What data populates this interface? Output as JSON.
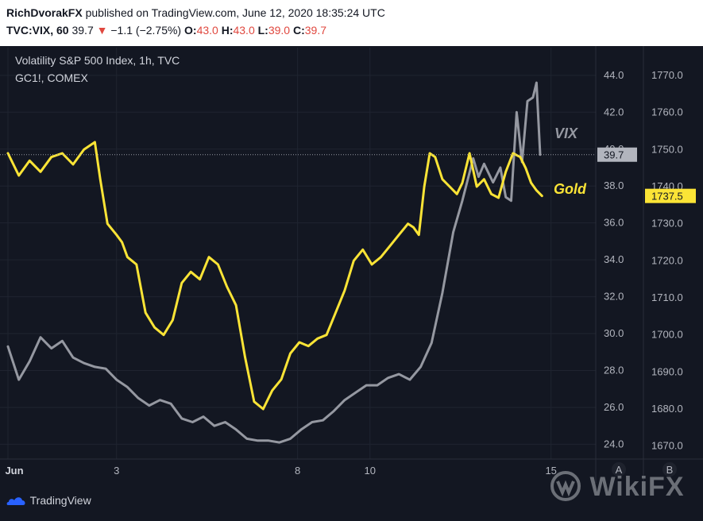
{
  "header": {
    "author": "RichDvorakFX",
    "published": "published on TradingView.com, June 12, 2020 18:35:24 UTC",
    "symbol": "TVC:VIX, 60",
    "last": "39.7",
    "arrow": "▼",
    "change": "−1.1 (−2.75%)",
    "o_label": "O:",
    "o_value": "43.0",
    "h_label": "H:",
    "h_value": "43.0",
    "l_label": "L:",
    "l_value": "39.0",
    "c_label": "C:",
    "c_value": "39.7"
  },
  "legend": {
    "line1": "Volatility S&P 500 Index, 1h, TVC",
    "line2": "GC1!, COMEX"
  },
  "footer": {
    "brand": "TradingView",
    "watermark": "WikiFX"
  },
  "colors": {
    "vix": "#9598a1",
    "gold": "#fbe436",
    "background": "#131722"
  },
  "chart_data": {
    "type": "line",
    "x_ticks": [
      "Jun",
      "3",
      "8",
      "10",
      "15"
    ],
    "x_tick_positions": [
      0,
      3,
      8,
      10,
      15
    ],
    "axis_buttons": [
      "A",
      "B"
    ],
    "annotations": [
      {
        "text": "VIX",
        "series": "VIX"
      },
      {
        "text": "Gold",
        "series": "Gold"
      }
    ],
    "left_axis": {
      "ticks": [
        "24.0",
        "26.0",
        "28.0",
        "30.0",
        "32.0",
        "34.0",
        "36.0",
        "38.0",
        "40.0",
        "42.0",
        "44.0"
      ],
      "range": [
        23.2,
        45.5
      ],
      "current_label": "39.7"
    },
    "right_axis": {
      "ticks": [
        "1670.0",
        "1680.0",
        "1690.0",
        "1700.0",
        "1710.0",
        "1720.0",
        "1730.0",
        "1740.0",
        "1750.0",
        "1760.0",
        "1770.0"
      ],
      "range": [
        1666.5,
        1777.5
      ],
      "current_label": "1737.5"
    },
    "series": [
      {
        "name": "VIX",
        "axis": "left",
        "points": [
          [
            0.0,
            29.3
          ],
          [
            0.3,
            27.5
          ],
          [
            0.6,
            28.5
          ],
          [
            0.9,
            29.8
          ],
          [
            1.2,
            29.2
          ],
          [
            1.5,
            29.6
          ],
          [
            1.8,
            28.7
          ],
          [
            2.1,
            28.4
          ],
          [
            2.4,
            28.2
          ],
          [
            2.7,
            28.1
          ],
          [
            3.0,
            27.5
          ],
          [
            3.3,
            27.1
          ],
          [
            3.6,
            26.5
          ],
          [
            3.9,
            26.1
          ],
          [
            4.2,
            26.4
          ],
          [
            4.5,
            26.2
          ],
          [
            4.8,
            25.4
          ],
          [
            5.1,
            25.2
          ],
          [
            5.4,
            25.5
          ],
          [
            5.7,
            25.0
          ],
          [
            6.0,
            25.2
          ],
          [
            6.3,
            24.8
          ],
          [
            6.6,
            24.3
          ],
          [
            6.9,
            24.2
          ],
          [
            7.2,
            24.2
          ],
          [
            7.5,
            24.1
          ],
          [
            7.8,
            24.3
          ],
          [
            8.1,
            24.8
          ],
          [
            8.4,
            25.2
          ],
          [
            8.7,
            25.3
          ],
          [
            9.0,
            25.8
          ],
          [
            9.3,
            26.4
          ],
          [
            9.6,
            26.8
          ],
          [
            9.9,
            27.2
          ],
          [
            10.2,
            27.2
          ],
          [
            10.5,
            27.6
          ],
          [
            10.8,
            27.8
          ],
          [
            11.1,
            27.5
          ],
          [
            11.4,
            28.2
          ],
          [
            11.7,
            29.5
          ],
          [
            12.0,
            32.2
          ],
          [
            12.3,
            35.5
          ],
          [
            12.55,
            37.2
          ],
          [
            12.85,
            39.5
          ],
          [
            13.0,
            38.5
          ],
          [
            13.15,
            39.2
          ],
          [
            13.4,
            38.2
          ],
          [
            13.6,
            39.0
          ],
          [
            13.75,
            37.4
          ],
          [
            13.9,
            37.2
          ],
          [
            14.05,
            42.0
          ],
          [
            14.2,
            39.3
          ],
          [
            14.35,
            42.6
          ],
          [
            14.5,
            42.8
          ],
          [
            14.6,
            43.6
          ],
          [
            14.7,
            39.7
          ]
        ]
      },
      {
        "name": "Gold",
        "axis": "right",
        "points": [
          [
            0.0,
            1749
          ],
          [
            0.3,
            1743
          ],
          [
            0.6,
            1747
          ],
          [
            0.9,
            1744
          ],
          [
            1.2,
            1748
          ],
          [
            1.5,
            1749
          ],
          [
            1.8,
            1746
          ],
          [
            2.1,
            1750
          ],
          [
            2.4,
            1752
          ],
          [
            2.55,
            1742
          ],
          [
            2.75,
            1730
          ],
          [
            3.0,
            1727
          ],
          [
            3.15,
            1725
          ],
          [
            3.3,
            1721
          ],
          [
            3.55,
            1719
          ],
          [
            3.8,
            1706
          ],
          [
            4.05,
            1702
          ],
          [
            4.3,
            1700
          ],
          [
            4.55,
            1704
          ],
          [
            4.8,
            1714
          ],
          [
            5.05,
            1717
          ],
          [
            5.3,
            1715
          ],
          [
            5.55,
            1721
          ],
          [
            5.8,
            1719
          ],
          [
            6.05,
            1713
          ],
          [
            6.3,
            1708
          ],
          [
            6.55,
            1694
          ],
          [
            6.8,
            1682
          ],
          [
            7.05,
            1680
          ],
          [
            7.3,
            1685
          ],
          [
            7.55,
            1688
          ],
          [
            7.8,
            1695
          ],
          [
            8.05,
            1698
          ],
          [
            8.3,
            1697
          ],
          [
            8.55,
            1699
          ],
          [
            8.8,
            1700
          ],
          [
            9.05,
            1706
          ],
          [
            9.3,
            1712
          ],
          [
            9.55,
            1720
          ],
          [
            9.8,
            1723
          ],
          [
            10.05,
            1719
          ],
          [
            10.3,
            1721
          ],
          [
            10.55,
            1724
          ],
          [
            10.8,
            1727
          ],
          [
            11.05,
            1730
          ],
          [
            11.2,
            1729
          ],
          [
            11.35,
            1727
          ],
          [
            11.5,
            1740
          ],
          [
            11.65,
            1749
          ],
          [
            11.8,
            1748
          ],
          [
            12.0,
            1742
          ],
          [
            12.2,
            1740
          ],
          [
            12.4,
            1738
          ],
          [
            12.55,
            1741
          ],
          [
            12.75,
            1749
          ],
          [
            12.95,
            1740
          ],
          [
            13.15,
            1742
          ],
          [
            13.35,
            1738
          ],
          [
            13.55,
            1737
          ],
          [
            13.75,
            1744
          ],
          [
            13.95,
            1749
          ],
          [
            14.15,
            1748
          ],
          [
            14.3,
            1745
          ],
          [
            14.45,
            1741
          ],
          [
            14.6,
            1739
          ],
          [
            14.75,
            1737.5
          ]
        ]
      }
    ]
  }
}
